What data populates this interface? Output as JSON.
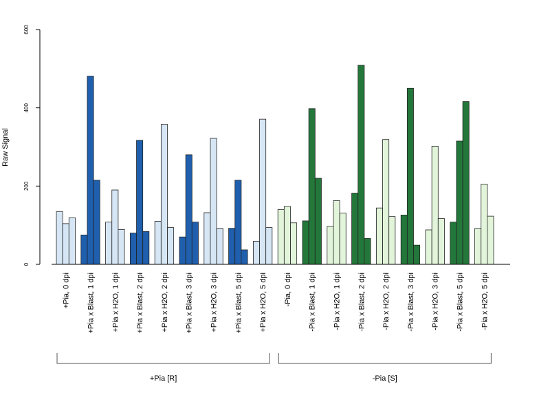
{
  "chart_data": {
    "type": "bar",
    "ylabel": "Raw Signal",
    "ylim": [
      0,
      600
    ],
    "yticks": [
      "0",
      "200",
      "400",
      "600"
    ],
    "colors": {
      "blue_light": "#d6e6f5",
      "blue_dark": "#1f5fad",
      "green_light": "#e2f5da",
      "green_dark": "#23773a"
    },
    "categories": [
      {
        "label": "+Pia, 0 dpi",
        "values": [
          135,
          104,
          119
        ],
        "color": "blue_light"
      },
      {
        "label": "+Pia x Blast, 1 dpi",
        "values": [
          75,
          481,
          215
        ],
        "color": "blue_dark"
      },
      {
        "label": "+Pia x H2O, 1 dpi",
        "values": [
          108,
          190,
          89
        ],
        "color": "blue_light"
      },
      {
        "label": "+Pia x Blast, 2 dpi",
        "values": [
          80,
          317,
          84
        ],
        "color": "blue_dark"
      },
      {
        "label": "+Pia x H2O, 2 dpi",
        "values": [
          110,
          358,
          94
        ],
        "color": "blue_light"
      },
      {
        "label": "+Pia x Blast, 3 dpi",
        "values": [
          70,
          280,
          108
        ],
        "color": "blue_dark"
      },
      {
        "label": "+Pia x H2O, 3 dpi",
        "values": [
          132,
          322,
          92
        ],
        "color": "blue_light"
      },
      {
        "label": "+Pia x Blast, 5 dpi",
        "values": [
          92,
          215,
          37
        ],
        "color": "blue_dark"
      },
      {
        "label": "+Pia x H2O, 5 dpi",
        "values": [
          59,
          371,
          94
        ],
        "color": "blue_light"
      },
      {
        "label": "-Pia, 0 dpi",
        "values": [
          140,
          148,
          106
        ],
        "color": "green_light"
      },
      {
        "label": "-Pia x Blast, 1 dpi",
        "values": [
          111,
          398,
          220
        ],
        "color": "green_dark"
      },
      {
        "label": "-Pia x H2O, 1 dpi",
        "values": [
          97,
          163,
          131
        ],
        "color": "green_light"
      },
      {
        "label": "-Pia x Blast, 2 dpi",
        "values": [
          182,
          509,
          66
        ],
        "color": "green_dark"
      },
      {
        "label": "-Pia x H2O, 2 dpi",
        "values": [
          144,
          319,
          122
        ],
        "color": "green_light"
      },
      {
        "label": "-Pia x Blast, 3 dpi",
        "values": [
          126,
          450,
          49
        ],
        "color": "green_dark"
      },
      {
        "label": "-Pia x H2O, 3 dpi",
        "values": [
          88,
          302,
          117
        ],
        "color": "green_light"
      },
      {
        "label": "-Pia x Blast, 5 dpi",
        "values": [
          108,
          315,
          416
        ],
        "color": "green_dark"
      },
      {
        "label": "-Pia x H2O, 5 dpi",
        "values": [
          92,
          205,
          123
        ],
        "color": "green_light"
      }
    ],
    "groups": [
      {
        "label": "+Pia [R]",
        "first": 0,
        "last": 8
      },
      {
        "label": "-Pia [S]",
        "first": 9,
        "last": 17
      }
    ],
    "grid": false,
    "legend": "none"
  }
}
